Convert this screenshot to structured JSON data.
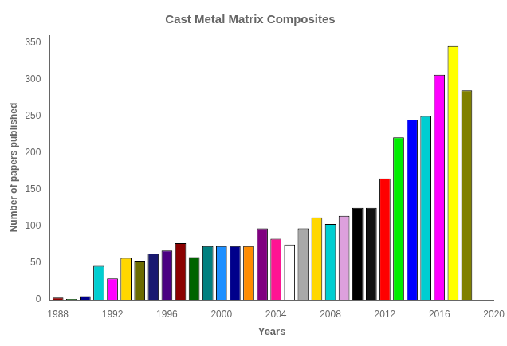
{
  "chart_data": {
    "type": "bar",
    "title": "Cast Metal Matrix Composites",
    "x": [
      1988,
      1989,
      1990,
      1991,
      1992,
      1993,
      1994,
      1995,
      1996,
      1997,
      1998,
      1999,
      2000,
      2001,
      2002,
      2003,
      2004,
      2005,
      2006,
      2007,
      2008,
      2009,
      2010,
      2011,
      2012,
      2013,
      2014,
      2015,
      2016,
      2017,
      2018
    ],
    "values": [
      3,
      1,
      5,
      46,
      29,
      57,
      52,
      63,
      67,
      77,
      58,
      73,
      73,
      73,
      73,
      97,
      83,
      75,
      97,
      112,
      103,
      114,
      125,
      125,
      165,
      221,
      245,
      250,
      306,
      345,
      285
    ],
    "colors": [
      "#8B0000",
      "#006400",
      "#00008B",
      "#00CED1",
      "#FF00FF",
      "#FFD700",
      "#6B6B00",
      "#191970",
      "#4B0082",
      "#8B0000",
      "#006400",
      "#008080",
      "#1E90FF",
      "#00008B",
      "#FF8C00",
      "#800080",
      "#FF1493",
      "#FFFFFF",
      "#A9A9A9",
      "#FFD700",
      "#00CED1",
      "#DDA0DD",
      "#000000",
      "#111111",
      "#FF0000",
      "#00EE00",
      "#0000FF",
      "#00CED1",
      "#FF00FF",
      "#FFFF00",
      "#808000"
    ],
    "xlabel": "Years",
    "ylabel": "Number of papers published",
    "xlim": [
      1987.4,
      2020
    ],
    "xticks": [
      1988,
      1992,
      1996,
      2000,
      2004,
      2008,
      2012,
      2016,
      2020
    ],
    "ylim": [
      0,
      360
    ],
    "yticks": [
      0,
      50,
      100,
      150,
      200,
      250,
      300,
      350
    ],
    "grid": false
  }
}
